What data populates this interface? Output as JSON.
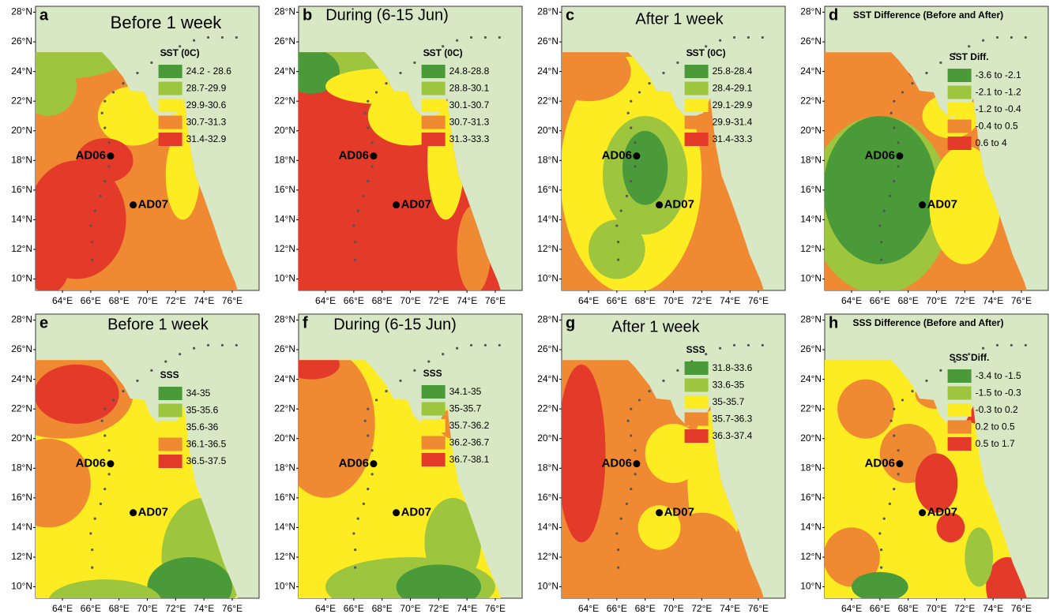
{
  "lat_ticks": [
    "28°N",
    "26°N",
    "24°N",
    "22°N",
    "20°N",
    "18°N",
    "16°N",
    "14°N",
    "12°N",
    "10°N"
  ],
  "lon_ticks": [
    "64°E",
    "66°E",
    "68°E",
    "70°E",
    "72°E",
    "74°E",
    "76°E"
  ],
  "stations": [
    "AD06",
    "AD07"
  ],
  "legend_colors": [
    "#4a9a3a",
    "#9dc63e",
    "#fdec22",
    "#f08a32",
    "#e43a2a"
  ],
  "land_color": "#d8e8c4",
  "panels": [
    {
      "letter": "a",
      "title": "Before 1 week",
      "legend_title": "SST (0C)",
      "legend": [
        "24.2 - 28.6",
        "28.7-29.9",
        "29.9-30.6",
        "30.7-31.3",
        "31.4-32.9"
      ]
    },
    {
      "letter": "b",
      "title": "During (6-15 Jun)",
      "legend_title": "SST (0C)",
      "legend": [
        "24.8-28.8",
        "28.8-30.1",
        "30.1-30.7",
        "30.7-31.3",
        "31.3-33.3"
      ]
    },
    {
      "letter": "c",
      "title": "After 1 week",
      "legend_title": "SST (0C)",
      "legend": [
        "25.8-28.4",
        "28.4-29.1",
        "29.1-29.9",
        "29.9-31.4",
        "31.4-33.3"
      ]
    },
    {
      "letter": "d",
      "title": "SST Difference (Before and After)",
      "legend_title": "SST Diff.",
      "legend": [
        "-3.6 to -2.1",
        "-2.1 to -1.2",
        "-1.2 to -0.4",
        "-0.4 to 0.5",
        "0.6 to 4"
      ]
    },
    {
      "letter": "e",
      "title": "Before 1 week",
      "legend_title": "SSS",
      "legend": [
        "34-35",
        "35-35.6",
        "35.6-36",
        "36.1-36.5",
        "36.5-37.5"
      ]
    },
    {
      "letter": "f",
      "title": "During (6-15 Jun)",
      "legend_title": "SSS",
      "legend": [
        "34.1-35",
        "35-35.7",
        "35.7-36.2",
        "36.2-36.7",
        "36.7-38.1"
      ]
    },
    {
      "letter": "g",
      "title": "After 1 week",
      "legend_title": "SSS",
      "legend": [
        "31.8-33.6",
        "33.6-35",
        "35-35.7",
        "35.7-36.3",
        "36.3-37.4"
      ]
    },
    {
      "letter": "h",
      "title": "SSS Difference (Before and After)",
      "legend_title": "SSS Diff.",
      "legend": [
        "-3.4 to -1.5",
        "-1.5 to -0.3",
        "-0.3 to 0.2",
        "0.2 to 0.5",
        "0.5 to 1.7"
      ]
    }
  ]
}
